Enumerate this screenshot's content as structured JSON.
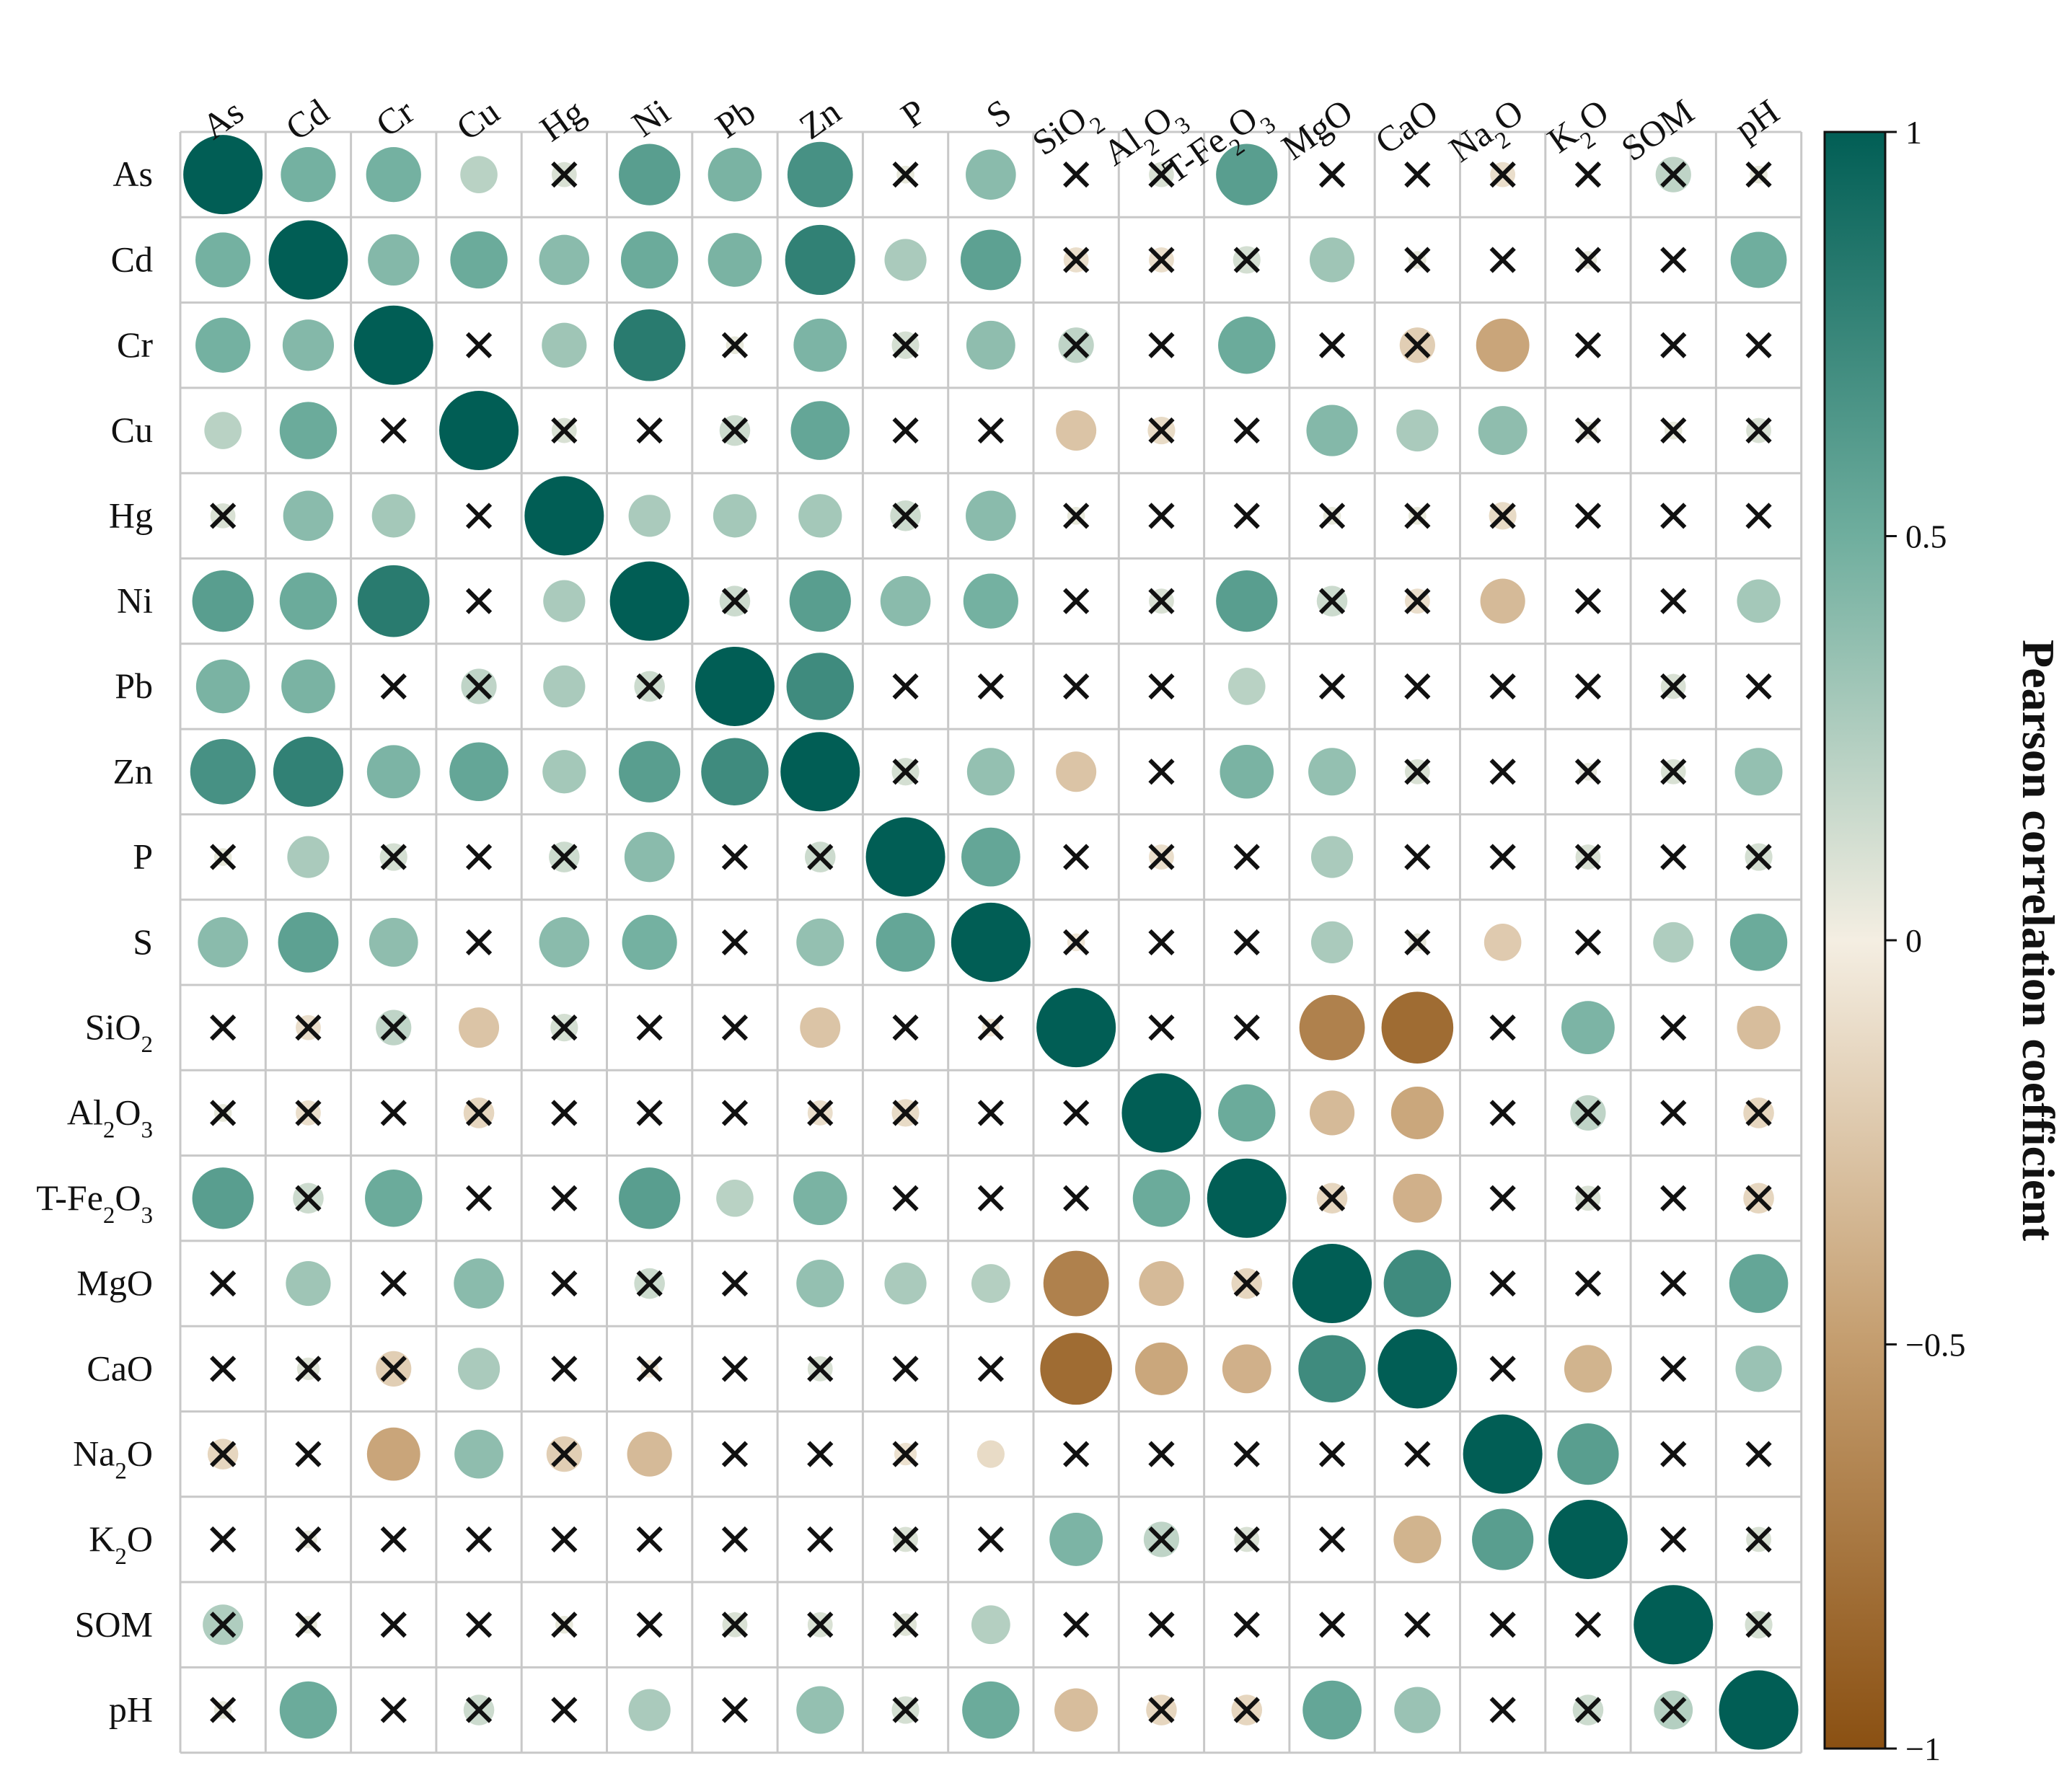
{
  "chart_data": {
    "type": "heatmap",
    "subtype": "correlogram-circles",
    "variables": [
      "As",
      "Cd",
      "Cr",
      "Cu",
      "Hg",
      "Ni",
      "Pb",
      "Zn",
      "P",
      "S",
      "SiO2",
      "Al2O3",
      "T-Fe2O3",
      "MgO",
      "CaO",
      "Na2O",
      "K2O",
      "SOM",
      "pH"
    ],
    "column_labels": [
      [
        {
          "t": "As"
        }
      ],
      [
        {
          "t": "Cd"
        }
      ],
      [
        {
          "t": "Cr"
        }
      ],
      [
        {
          "t": "Cu"
        }
      ],
      [
        {
          "t": "Hg"
        }
      ],
      [
        {
          "t": "Ni"
        }
      ],
      [
        {
          "t": "Pb"
        }
      ],
      [
        {
          "t": "Zn"
        }
      ],
      [
        {
          "t": "P"
        }
      ],
      [
        {
          "t": "S"
        }
      ],
      [
        {
          "t": "SiO"
        },
        {
          "t": "2",
          "sub": true
        }
      ],
      [
        {
          "t": "Al"
        },
        {
          "t": "2",
          "sub": true
        },
        {
          "t": "O"
        },
        {
          "t": "3",
          "sub": true
        }
      ],
      [
        {
          "t": "T-Fe"
        },
        {
          "t": "2",
          "sub": true
        },
        {
          "t": "O"
        },
        {
          "t": "3",
          "sub": true
        }
      ],
      [
        {
          "t": "MgO"
        }
      ],
      [
        {
          "t": "CaO"
        }
      ],
      [
        {
          "t": "Na"
        },
        {
          "t": "2",
          "sub": true
        },
        {
          "t": "O"
        }
      ],
      [
        {
          "t": "K"
        },
        {
          "t": "2",
          "sub": true
        },
        {
          "t": "O"
        }
      ],
      [
        {
          "t": "SOM"
        }
      ],
      [
        {
          "t": "pH"
        }
      ]
    ],
    "row_labels": [
      [
        {
          "t": "As"
        }
      ],
      [
        {
          "t": "Cd"
        }
      ],
      [
        {
          "t": "Cr"
        }
      ],
      [
        {
          "t": "Cu"
        }
      ],
      [
        {
          "t": "Hg"
        }
      ],
      [
        {
          "t": "Ni"
        }
      ],
      [
        {
          "t": "Pb"
        }
      ],
      [
        {
          "t": "Zn"
        }
      ],
      [
        {
          "t": "P"
        }
      ],
      [
        {
          "t": "S"
        }
      ],
      [
        {
          "t": "SiO"
        },
        {
          "t": "2",
          "sub": true
        }
      ],
      [
        {
          "t": "Al"
        },
        {
          "t": "2",
          "sub": true
        },
        {
          "t": "O"
        },
        {
          "t": "3",
          "sub": true
        }
      ],
      [
        {
          "t": "T-Fe"
        },
        {
          "t": "2",
          "sub": true
        },
        {
          "t": "O"
        },
        {
          "t": "3",
          "sub": true
        }
      ],
      [
        {
          "t": "MgO"
        }
      ],
      [
        {
          "t": "CaO"
        }
      ],
      [
        {
          "t": "Na"
        },
        {
          "t": "2",
          "sub": true
        },
        {
          "t": "O"
        }
      ],
      [
        {
          "t": "K"
        },
        {
          "t": "2",
          "sub": true
        },
        {
          "t": "O"
        }
      ],
      [
        {
          "t": "SOM"
        }
      ],
      [
        {
          "t": "pH"
        }
      ]
    ],
    "values": [
      [
        1.0,
        0.48,
        0.48,
        0.22,
        0.1,
        0.6,
        0.46,
        0.68,
        0.05,
        0.4,
        0.0,
        0.1,
        0.6,
        0.0,
        0.0,
        -0.1,
        0.0,
        0.2,
        0.05
      ],
      [
        0.48,
        1.0,
        0.42,
        0.52,
        0.4,
        0.52,
        0.46,
        0.78,
        0.28,
        0.58,
        -0.1,
        -0.1,
        0.12,
        0.32,
        0.05,
        0.0,
        0.05,
        0.0,
        0.5
      ],
      [
        0.48,
        0.42,
        1.0,
        0.0,
        0.32,
        0.82,
        0.05,
        0.45,
        0.12,
        0.38,
        0.2,
        0.0,
        0.52,
        0.0,
        -0.2,
        -0.45,
        0.0,
        0.0,
        0.0
      ],
      [
        0.22,
        0.52,
        0.0,
        1.0,
        0.1,
        0.0,
        0.15,
        0.55,
        0.0,
        0.0,
        -0.26,
        -0.12,
        0.0,
        0.42,
        0.28,
        0.38,
        0.05,
        0.05,
        0.1
      ],
      [
        0.1,
        0.4,
        0.3,
        0.0,
        1.0,
        0.28,
        0.3,
        0.3,
        0.15,
        0.4,
        0.05,
        0.0,
        0.0,
        0.05,
        0.05,
        -0.12,
        0.0,
        0.0,
        0.0
      ],
      [
        0.6,
        0.52,
        0.82,
        0.0,
        0.28,
        1.0,
        0.15,
        0.6,
        0.4,
        0.48,
        0.0,
        0.1,
        0.6,
        0.15,
        -0.1,
        -0.32,
        0.0,
        0.0,
        0.3
      ],
      [
        0.46,
        0.46,
        0.0,
        0.2,
        0.28,
        0.15,
        1.0,
        0.72,
        0.0,
        0.0,
        0.0,
        0.0,
        0.22,
        0.0,
        0.0,
        0.0,
        0.0,
        0.1,
        0.0
      ],
      [
        0.68,
        0.78,
        0.45,
        0.55,
        0.3,
        0.6,
        0.72,
        1.0,
        0.12,
        0.36,
        -0.26,
        0.0,
        0.46,
        0.36,
        0.1,
        0.0,
        0.05,
        0.1,
        0.36
      ],
      [
        0.05,
        0.28,
        0.12,
        0.0,
        0.15,
        0.4,
        0.0,
        0.15,
        1.0,
        0.55,
        0.0,
        -0.1,
        0.0,
        0.28,
        0.0,
        0.0,
        0.1,
        0.0,
        0.12
      ],
      [
        0.4,
        0.58,
        0.38,
        0.0,
        0.4,
        0.48,
        0.0,
        0.36,
        0.55,
        1.0,
        -0.05,
        0.0,
        0.0,
        0.28,
        0.05,
        -0.22,
        0.0,
        0.26,
        0.52
      ],
      [
        0.0,
        -0.1,
        0.2,
        -0.26,
        0.12,
        0.0,
        0.0,
        -0.26,
        0.0,
        -0.05,
        1.0,
        0.0,
        0.0,
        -0.68,
        -0.82,
        0.0,
        0.45,
        0.0,
        -0.3
      ],
      [
        0.05,
        -0.1,
        0.0,
        -0.15,
        0.0,
        0.0,
        0.0,
        -0.1,
        -0.12,
        0.0,
        0.0,
        1.0,
        0.52,
        -0.32,
        -0.44,
        0.0,
        0.2,
        0.0,
        -0.15
      ],
      [
        0.6,
        0.15,
        0.52,
        0.0,
        0.0,
        0.6,
        0.22,
        0.46,
        0.0,
        0.0,
        0.0,
        0.52,
        1.0,
        -0.15,
        -0.38,
        0.0,
        0.1,
        0.0,
        -0.15
      ],
      [
        0.0,
        0.32,
        0.0,
        0.4,
        0.0,
        0.15,
        0.0,
        0.36,
        0.28,
        0.24,
        -0.68,
        -0.32,
        -0.15,
        1.0,
        0.72,
        0.0,
        0.0,
        0.0,
        0.55
      ],
      [
        0.0,
        0.08,
        -0.2,
        0.28,
        0.0,
        -0.05,
        0.0,
        0.1,
        0.0,
        0.0,
        -0.82,
        -0.44,
        -0.38,
        0.72,
        1.0,
        0.0,
        -0.36,
        0.0,
        0.34
      ],
      [
        -0.15,
        0.0,
        -0.45,
        0.38,
        -0.2,
        -0.32,
        0.0,
        0.0,
        -0.08,
        -0.12,
        0.0,
        0.0,
        0.0,
        0.0,
        0.0,
        1.0,
        0.6,
        0.0,
        0.0
      ],
      [
        0.0,
        0.05,
        0.0,
        0.0,
        0.0,
        0.0,
        0.0,
        0.0,
        0.1,
        0.0,
        0.45,
        0.2,
        0.1,
        0.0,
        -0.36,
        0.6,
        1.0,
        0.0,
        0.1
      ],
      [
        0.26,
        0.05,
        0.0,
        0.0,
        0.05,
        0.0,
        0.1,
        0.1,
        0.08,
        0.24,
        0.0,
        0.0,
        0.0,
        0.0,
        0.0,
        0.0,
        0.0,
        1.0,
        0.12
      ],
      [
        0.05,
        0.52,
        0.0,
        0.15,
        0.0,
        0.28,
        0.0,
        0.36,
        0.12,
        0.52,
        -0.3,
        -0.15,
        -0.15,
        0.55,
        0.34,
        0.0,
        0.15,
        0.24,
        1.0
      ]
    ],
    "non_significant": [
      [
        0,
        0,
        0,
        0,
        1,
        0,
        0,
        0,
        1,
        0,
        1,
        1,
        0,
        1,
        1,
        1,
        1,
        1,
        1
      ],
      [
        0,
        0,
        0,
        0,
        0,
        0,
        0,
        0,
        0,
        0,
        1,
        1,
        1,
        0,
        1,
        1,
        1,
        1,
        0
      ],
      [
        0,
        0,
        0,
        1,
        0,
        0,
        1,
        0,
        1,
        0,
        1,
        1,
        0,
        1,
        1,
        0,
        1,
        1,
        1
      ],
      [
        0,
        0,
        1,
        0,
        1,
        1,
        1,
        0,
        1,
        1,
        0,
        1,
        1,
        0,
        0,
        0,
        1,
        1,
        1
      ],
      [
        1,
        0,
        0,
        1,
        0,
        0,
        0,
        0,
        1,
        0,
        1,
        1,
        1,
        1,
        1,
        1,
        1,
        1,
        1
      ],
      [
        0,
        0,
        0,
        1,
        0,
        0,
        1,
        0,
        0,
        0,
        1,
        1,
        0,
        1,
        1,
        0,
        1,
        1,
        0
      ],
      [
        0,
        0,
        1,
        1,
        0,
        1,
        0,
        0,
        1,
        1,
        1,
        1,
        0,
        1,
        1,
        1,
        1,
        1,
        1
      ],
      [
        0,
        0,
        0,
        0,
        0,
        0,
        0,
        0,
        1,
        0,
        0,
        1,
        0,
        0,
        1,
        1,
        1,
        1,
        0
      ],
      [
        1,
        0,
        1,
        1,
        1,
        0,
        1,
        1,
        0,
        0,
        1,
        1,
        1,
        0,
        1,
        1,
        1,
        1,
        1
      ],
      [
        0,
        0,
        0,
        1,
        0,
        0,
        1,
        0,
        0,
        0,
        1,
        1,
        1,
        0,
        1,
        0,
        1,
        0,
        0
      ],
      [
        1,
        1,
        1,
        0,
        1,
        1,
        1,
        0,
        1,
        1,
        0,
        1,
        1,
        0,
        0,
        1,
        0,
        1,
        0
      ],
      [
        1,
        1,
        1,
        1,
        1,
        1,
        1,
        1,
        1,
        1,
        1,
        0,
        0,
        0,
        0,
        1,
        1,
        1,
        1
      ],
      [
        0,
        1,
        0,
        1,
        1,
        0,
        0,
        0,
        1,
        1,
        1,
        0,
        0,
        1,
        0,
        1,
        1,
        1,
        1
      ],
      [
        1,
        0,
        1,
        0,
        1,
        1,
        1,
        0,
        0,
        0,
        0,
        0,
        1,
        0,
        0,
        1,
        1,
        1,
        0
      ],
      [
        1,
        1,
        1,
        0,
        1,
        1,
        1,
        1,
        1,
        1,
        0,
        0,
        0,
        0,
        0,
        1,
        0,
        1,
        0
      ],
      [
        1,
        1,
        0,
        0,
        1,
        0,
        1,
        1,
        1,
        0,
        1,
        1,
        1,
        1,
        1,
        0,
        0,
        1,
        1
      ],
      [
        1,
        1,
        1,
        1,
        1,
        1,
        1,
        1,
        1,
        1,
        0,
        1,
        1,
        1,
        0,
        0,
        0,
        1,
        1
      ],
      [
        1,
        1,
        1,
        1,
        1,
        1,
        1,
        1,
        1,
        0,
        1,
        1,
        1,
        1,
        1,
        1,
        1,
        0,
        1
      ],
      [
        1,
        0,
        1,
        1,
        1,
        0,
        1,
        0,
        1,
        0,
        0,
        1,
        1,
        0,
        0,
        1,
        1,
        1,
        0
      ]
    ],
    "colorbar": {
      "title": "Pearson correlation coefficient",
      "range": [
        -1,
        1
      ],
      "ticks": [
        1,
        0.5,
        0,
        -0.5,
        -1
      ],
      "tick_labels": [
        "1",
        "0.5",
        "0",
        "−0.5",
        "−1"
      ],
      "colors": {
        "neg_end": "#8a5012",
        "neg_mid": "#c49d6e",
        "zero": "#f4eee2",
        "pos_mid": "#6fae9e",
        "pos_end": "#015e55"
      }
    },
    "marker_for_non_significant": "cross"
  }
}
